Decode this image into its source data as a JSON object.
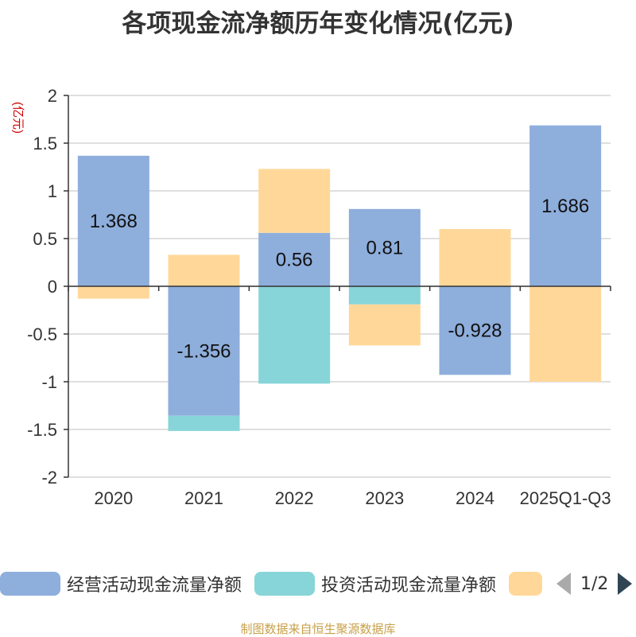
{
  "title": "各项现金流净额历年变化情况(亿元)",
  "source": "制图数据来自恒生聚源数据库",
  "legend": {
    "items": [
      {
        "label": "经营活动现金流量净额",
        "color": "#8eaedc"
      },
      {
        "label": "投资活动现金流量净额",
        "color": "#87d5d8"
      },
      {
        "label": "",
        "color": "#ffd899"
      }
    ],
    "pager": "1/2"
  },
  "chart_data": {
    "type": "bar",
    "stacked": true,
    "title": "各项现金流净额历年变化情况(亿元)",
    "ylabel": "(亿元)",
    "xlabel": "",
    "ylim": [
      -2,
      2
    ],
    "yticks": [
      2,
      1.5,
      1,
      0.5,
      0,
      -0.5,
      -1,
      -1.5,
      -2
    ],
    "ytick_labels": [
      "2",
      "1.5",
      "1",
      "0.5",
      "0",
      "-0.5",
      "-1",
      "-1.5",
      "-2"
    ],
    "grid": true,
    "categories": [
      "2020",
      "2021",
      "2022",
      "2023",
      "2024",
      "2025Q1-Q3"
    ],
    "series": [
      {
        "name": "经营活动现金流量净额",
        "color": "#8eaedc",
        "values": [
          1.368,
          -1.356,
          0.56,
          0.81,
          -0.928,
          1.686
        ],
        "data_labels": [
          "1.368",
          "-1.356",
          "0.56",
          "0.81",
          "-0.928",
          "1.686"
        ]
      },
      {
        "name": "投资活动现金流量净额",
        "color": "#87d5d8",
        "values": [
          0,
          -0.16,
          -1.02,
          -0.19,
          0,
          0
        ]
      },
      {
        "name": "",
        "color": "#ffd899",
        "values": [
          -0.13,
          0.33,
          0.67,
          -0.43,
          0.6,
          -1.0
        ]
      }
    ]
  }
}
